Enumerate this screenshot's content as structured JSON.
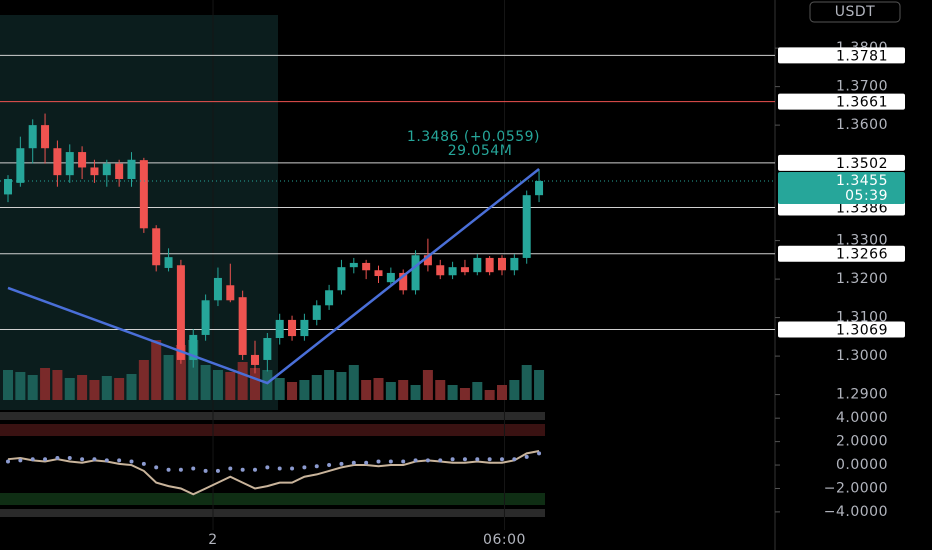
{
  "chart_data": {
    "type": "candlestick",
    "currency": "USDT",
    "annotation": [
      "1.3486 (+0.0559)",
      "29.054M"
    ],
    "last_price": {
      "value": 1.3455,
      "label": "1.3455"
    },
    "countdown": "05:39",
    "up_color": "#26a69a",
    "down_color": "#ef5350",
    "ylim": [
      1.286,
      1.3925
    ],
    "yticks": [
      {
        "value": 1.38,
        "label": "1.3800"
      },
      {
        "value": 1.37,
        "label": "1.3700"
      },
      {
        "value": 1.36,
        "label": "1.3600"
      },
      {
        "value": 1.33,
        "label": "1.3300"
      },
      {
        "value": 1.32,
        "label": "1.3200"
      },
      {
        "value": 1.31,
        "label": "1.3100"
      },
      {
        "value": 1.3,
        "label": "1.3000"
      },
      {
        "value": 1.29,
        "label": "1.2900"
      }
    ],
    "levels": [
      1.3781,
      1.3661,
      1.3502,
      1.3386,
      1.3266,
      1.3069
    ],
    "level_colors": [
      "#d0d0d0",
      "#ef5350",
      "#d0d0d0",
      "#d0d0d0",
      "#d0d0d0",
      "#d0d0d0"
    ],
    "xticks": [
      {
        "value": 16.6,
        "label": "2"
      },
      {
        "value": 40.2,
        "label": "06:00"
      }
    ],
    "ohlc": [
      [
        1.342,
        1.347,
        1.34,
        1.346
      ],
      [
        1.345,
        1.357,
        1.344,
        1.354
      ],
      [
        1.354,
        1.3615,
        1.35,
        1.36
      ],
      [
        1.36,
        1.363,
        1.35,
        1.354
      ],
      [
        1.354,
        1.356,
        1.344,
        1.347
      ],
      [
        1.347,
        1.355,
        1.345,
        1.353
      ],
      [
        1.353,
        1.3545,
        1.346,
        1.349
      ],
      [
        1.349,
        1.351,
        1.345,
        1.347
      ],
      [
        1.347,
        1.351,
        1.344,
        1.35
      ],
      [
        1.35,
        1.351,
        1.344,
        1.346
      ],
      [
        1.346,
        1.353,
        1.344,
        1.351
      ],
      [
        1.3509,
        1.3515,
        1.332,
        1.3332
      ],
      [
        1.3332,
        1.334,
        1.322,
        1.3236
      ],
      [
        1.3229,
        1.328,
        1.322,
        1.3257
      ],
      [
        1.3236,
        1.325,
        1.298,
        1.299
      ],
      [
        1.299,
        1.307,
        1.297,
        1.3055
      ],
      [
        1.3055,
        1.316,
        1.304,
        1.3145
      ],
      [
        1.3145,
        1.323,
        1.313,
        1.3203
      ],
      [
        1.3184,
        1.324,
        1.314,
        1.3145
      ],
      [
        1.3153,
        1.317,
        1.299,
        1.3003
      ],
      [
        1.3003,
        1.304,
        1.2955,
        1.2977
      ],
      [
        1.299,
        1.306,
        1.296,
        1.3047
      ],
      [
        1.3047,
        1.311,
        1.303,
        1.3094
      ],
      [
        1.3094,
        1.3105,
        1.304,
        1.3052
      ],
      [
        1.3052,
        1.311,
        1.304,
        1.3094
      ],
      [
        1.3094,
        1.3145,
        1.308,
        1.3132
      ],
      [
        1.3132,
        1.3185,
        1.312,
        1.3171
      ],
      [
        1.3171,
        1.325,
        1.316,
        1.3231
      ],
      [
        1.3231,
        1.3255,
        1.3215,
        1.3242
      ],
      [
        1.3242,
        1.325,
        1.32,
        1.3223
      ],
      [
        1.3223,
        1.3235,
        1.319,
        1.3208
      ],
      [
        1.3192,
        1.323,
        1.318,
        1.3216
      ],
      [
        1.3216,
        1.3225,
        1.316,
        1.3171
      ],
      [
        1.3171,
        1.3275,
        1.316,
        1.3262
      ],
      [
        1.3262,
        1.3305,
        1.322,
        1.3236
      ],
      [
        1.3236,
        1.325,
        1.32,
        1.321
      ],
      [
        1.321,
        1.3245,
        1.32,
        1.3231
      ],
      [
        1.3231,
        1.325,
        1.321,
        1.3218
      ],
      [
        1.3218,
        1.3265,
        1.321,
        1.3255
      ],
      [
        1.3255,
        1.326,
        1.321,
        1.3218
      ],
      [
        1.3255,
        1.3262,
        1.321,
        1.3223
      ],
      [
        1.3223,
        1.3265,
        1.321,
        1.3255
      ],
      [
        1.3255,
        1.343,
        1.324,
        1.3418
      ],
      [
        1.3418,
        1.3486,
        1.34,
        1.3455
      ]
    ],
    "volume": [
      30,
      28,
      25,
      32,
      30,
      22,
      25,
      20,
      24,
      22,
      26,
      40,
      60,
      45,
      55,
      60,
      35,
      30,
      28,
      38,
      32,
      30,
      22,
      18,
      20,
      25,
      30,
      28,
      35,
      20,
      22,
      18,
      20,
      15,
      30,
      20,
      15,
      12,
      18,
      10,
      15,
      20,
      35,
      30
    ],
    "vlim": [
      0,
      100
    ],
    "trendline": {
      "color": "#4a6fd8",
      "x": [
        0,
        21,
        43
      ],
      "values": [
        1.3177,
        1.293,
        1.3486
      ]
    },
    "oscillator": {
      "ylim": [
        -6.4,
        4.7
      ],
      "yticks": [
        {
          "value": 4,
          "label": "4.0000"
        },
        {
          "value": 2,
          "label": "2.0000"
        },
        {
          "value": 0,
          "label": "0.0000"
        },
        {
          "value": -2,
          "label": "−2.0000"
        },
        {
          "value": -4,
          "label": "−4.0000"
        }
      ],
      "series": [
        {
          "color": "#c9b49b",
          "values": [
            0.5,
            0.6,
            0.4,
            0.3,
            0.5,
            0.3,
            0.2,
            0.4,
            0.3,
            0.1,
            0.0,
            -0.5,
            -1.5,
            -1.8,
            -2.0,
            -2.5,
            -2.0,
            -1.5,
            -1.0,
            -1.5,
            -2.0,
            -1.8,
            -1.5,
            -1.5,
            -1.0,
            -0.8,
            -0.5,
            -0.2,
            0.0,
            0.0,
            -0.1,
            0.0,
            0.0,
            0.3,
            0.4,
            0.3,
            0.2,
            0.2,
            0.3,
            0.2,
            0.2,
            0.4,
            1.0,
            1.2
          ]
        },
        {
          "color": "#8c9bd0",
          "dotted": true,
          "values": [
            0.3,
            0.4,
            0.5,
            0.5,
            0.6,
            0.6,
            0.5,
            0.5,
            0.4,
            0.4,
            0.3,
            0.1,
            -0.2,
            -0.4,
            -0.4,
            -0.3,
            -0.5,
            -0.5,
            -0.3,
            -0.4,
            -0.4,
            -0.2,
            -0.3,
            -0.3,
            -0.2,
            -0.1,
            0.0,
            0.1,
            0.2,
            0.2,
            0.3,
            0.3,
            0.3,
            0.4,
            0.4,
            0.4,
            0.5,
            0.5,
            0.5,
            0.5,
            0.5,
            0.5,
            0.7,
            1.0
          ]
        }
      ]
    }
  }
}
